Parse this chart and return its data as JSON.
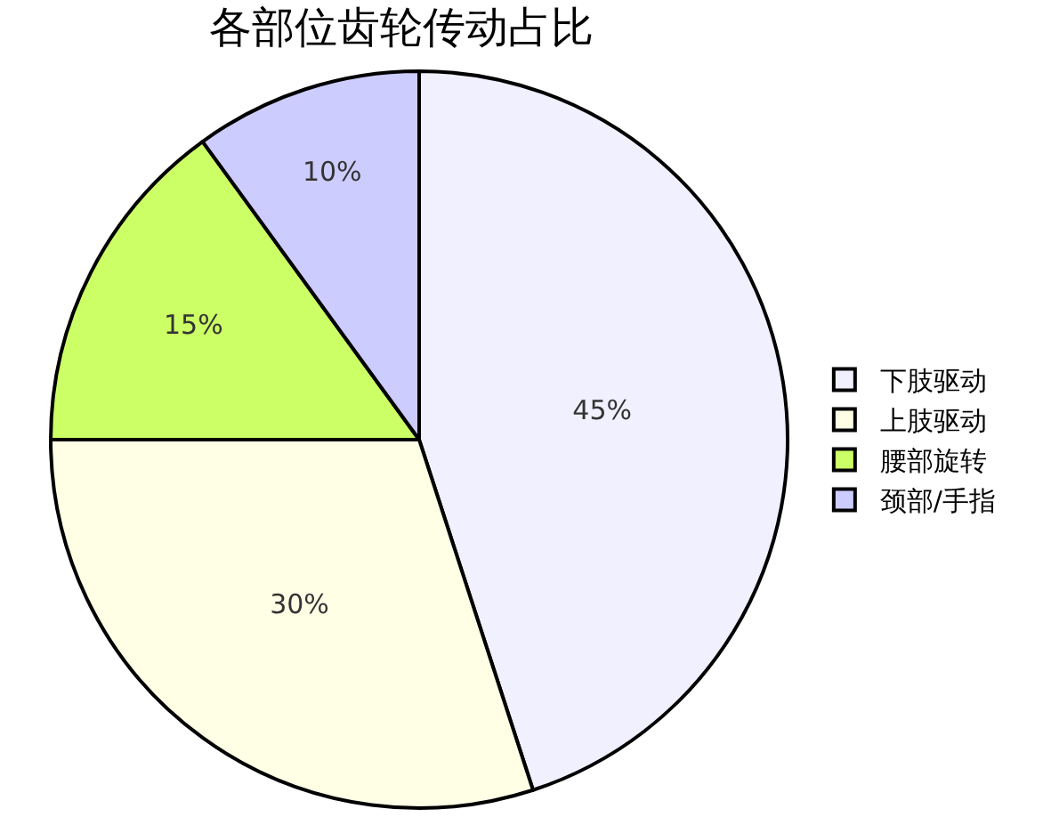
{
  "chart_data": {
    "type": "pie",
    "title": "各部位齿轮传动占比",
    "categories": [
      "下肢驱动",
      "上肢驱动",
      "腰部旋转",
      "颈部/手指"
    ],
    "values": [
      45,
      30,
      15,
      10
    ],
    "colors": [
      "#f0f0ff",
      "#ffffe6",
      "#ccff66",
      "#ccccff"
    ],
    "value_labels": [
      "45%",
      "30%",
      "15%",
      "10%"
    ],
    "legend": "right"
  }
}
